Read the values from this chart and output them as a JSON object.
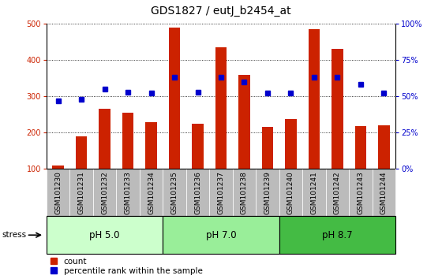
{
  "title": "GDS1827 / eutJ_b2454_at",
  "samples": [
    "GSM101230",
    "GSM101231",
    "GSM101232",
    "GSM101233",
    "GSM101234",
    "GSM101235",
    "GSM101236",
    "GSM101237",
    "GSM101238",
    "GSM101239",
    "GSM101240",
    "GSM101241",
    "GSM101242",
    "GSM101243",
    "GSM101244"
  ],
  "counts": [
    110,
    190,
    265,
    255,
    228,
    490,
    225,
    435,
    360,
    215,
    238,
    485,
    430,
    218,
    220
  ],
  "percentile_ranks": [
    47,
    48,
    55,
    53,
    52,
    63,
    53,
    63,
    60,
    52,
    52,
    63,
    63,
    58,
    52
  ],
  "ymin": 100,
  "ymax": 500,
  "yticks_left": [
    100,
    200,
    300,
    400,
    500
  ],
  "yticks_right": [
    0,
    25,
    50,
    75,
    100
  ],
  "ytick_labels_right": [
    "0%",
    "25%",
    "50%",
    "75%",
    "100%"
  ],
  "groups": [
    {
      "label": "pH 5.0",
      "start": 0,
      "end": 4,
      "color": "#ccffcc"
    },
    {
      "label": "pH 7.0",
      "start": 5,
      "end": 9,
      "color": "#99ee99"
    },
    {
      "label": "pH 8.7",
      "start": 10,
      "end": 14,
      "color": "#44bb44"
    }
  ],
  "bar_color": "#cc2200",
  "dot_color": "#0000cc",
  "bar_width": 0.5,
  "legend_count_label": "count",
  "legend_pct_label": "percentile rank within the sample",
  "stress_label": "stress",
  "xlabel_area_color": "#bbbbbb",
  "title_fontsize": 10,
  "tick_fontsize": 7,
  "label_fontsize": 6.5,
  "group_fontsize": 8.5
}
